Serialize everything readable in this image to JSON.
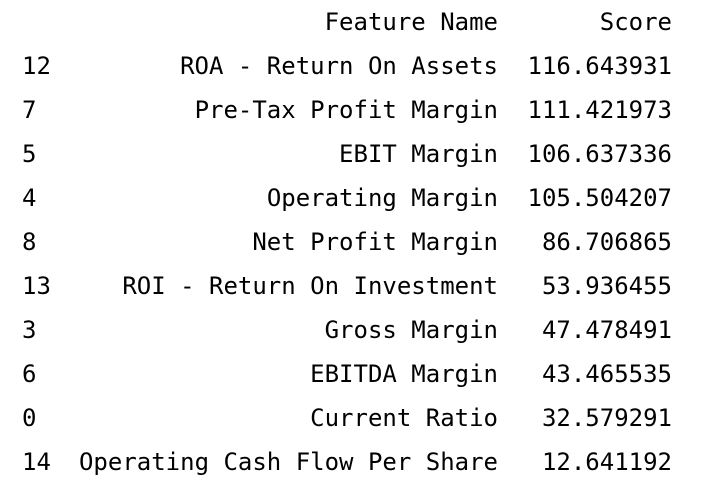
{
  "table": {
    "columns": {
      "index": "",
      "feature_name": "Feature Name",
      "score": "Score"
    },
    "rows": [
      {
        "index": "12",
        "feature_name": "ROA - Return On Assets",
        "score": "116.643931"
      },
      {
        "index": "7",
        "feature_name": "Pre-Tax Profit Margin",
        "score": "111.421973"
      },
      {
        "index": "5",
        "feature_name": "EBIT Margin",
        "score": "106.637336"
      },
      {
        "index": "4",
        "feature_name": "Operating Margin",
        "score": "105.504207"
      },
      {
        "index": "8",
        "feature_name": "Net Profit Margin",
        "score": "86.706865"
      },
      {
        "index": "13",
        "feature_name": "ROI - Return On Investment",
        "score": "53.936455"
      },
      {
        "index": "3",
        "feature_name": "Gross Margin",
        "score": "47.478491"
      },
      {
        "index": "6",
        "feature_name": "EBITDA Margin",
        "score": "43.465535"
      },
      {
        "index": "0",
        "feature_name": "Current Ratio",
        "score": "32.579291"
      },
      {
        "index": "14",
        "feature_name": "Operating Cash Flow Per Share",
        "score": "12.641192"
      }
    ]
  }
}
